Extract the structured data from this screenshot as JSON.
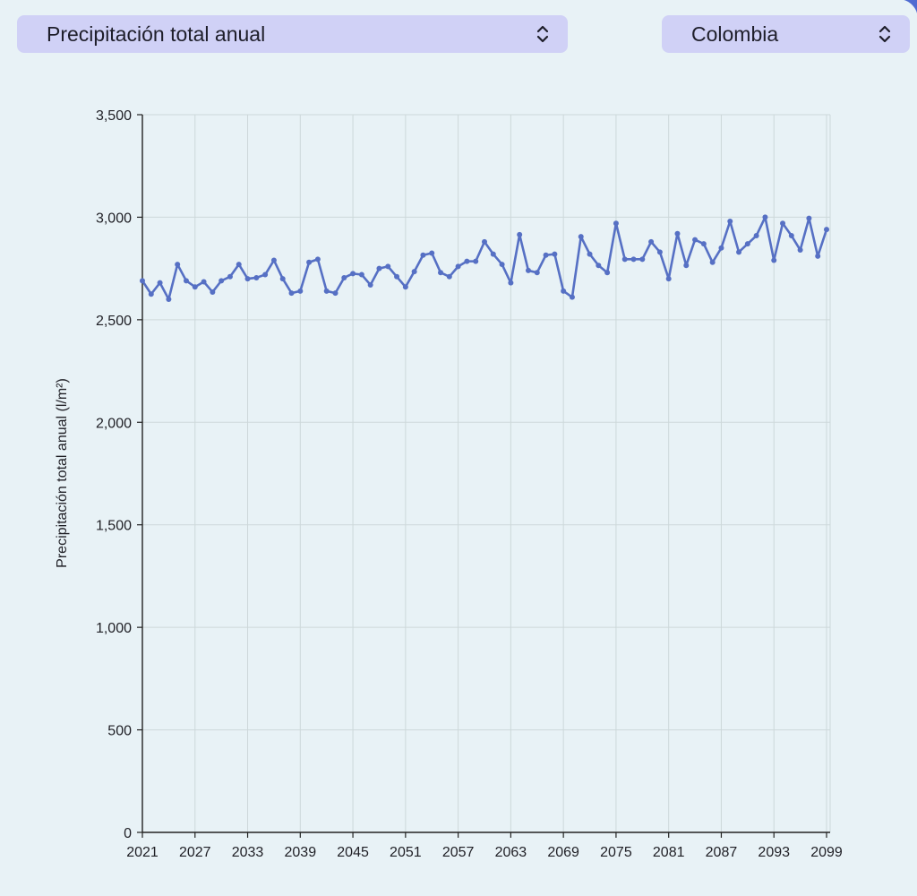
{
  "controls": {
    "variable_selected": "Precipitación total anual",
    "region_selected": "Colombia"
  },
  "icons": {
    "variable_select": "chevron-up-down-icon",
    "region_select": "chevron-up-down-icon"
  },
  "colors": {
    "background": "#e8f2f6",
    "select_background": "#d0d1f6",
    "line": "#5670c4",
    "grid": "#cdd8da"
  },
  "chart_data": {
    "type": "line",
    "title": "",
    "xlabel": "",
    "ylabel": "Precipitación total anual (l/m²)",
    "ylim": [
      0,
      3500
    ],
    "xlim": [
      2021,
      2099
    ],
    "grid": true,
    "x_tick_labels": [
      "2021",
      "2027",
      "2033",
      "2039",
      "2045",
      "2051",
      "2057",
      "2063",
      "2069",
      "2075",
      "2081",
      "2087",
      "2093",
      "2099"
    ],
    "y_tick_labels": [
      "0",
      "500",
      "1,000",
      "1,500",
      "2,000",
      "2,500",
      "3,000",
      "3,500"
    ],
    "x": [
      2021,
      2022,
      2023,
      2024,
      2025,
      2026,
      2027,
      2028,
      2029,
      2030,
      2031,
      2032,
      2033,
      2034,
      2035,
      2036,
      2037,
      2038,
      2039,
      2040,
      2041,
      2042,
      2043,
      2044,
      2045,
      2046,
      2047,
      2048,
      2049,
      2050,
      2051,
      2052,
      2053,
      2054,
      2055,
      2056,
      2057,
      2058,
      2059,
      2060,
      2061,
      2062,
      2063,
      2064,
      2065,
      2066,
      2067,
      2068,
      2069,
      2070,
      2071,
      2072,
      2073,
      2074,
      2075,
      2076,
      2077,
      2078,
      2079,
      2080,
      2081,
      2082,
      2083,
      2084,
      2085,
      2086,
      2087,
      2088,
      2089,
      2090,
      2091,
      2092,
      2093,
      2094,
      2095,
      2096,
      2097,
      2098,
      2099
    ],
    "values": [
      2690,
      2625,
      2680,
      2600,
      2770,
      2690,
      2660,
      2685,
      2635,
      2690,
      2710,
      2770,
      2700,
      2705,
      2720,
      2790,
      2700,
      2630,
      2640,
      2780,
      2795,
      2640,
      2630,
      2705,
      2725,
      2720,
      2670,
      2750,
      2760,
      2710,
      2660,
      2735,
      2815,
      2825,
      2730,
      2710,
      2760,
      2785,
      2785,
      2880,
      2820,
      2770,
      2680,
      2915,
      2740,
      2730,
      2815,
      2820,
      2640,
      2610,
      2905,
      2820,
      2765,
      2730,
      2970,
      2795,
      2795,
      2795,
      2880,
      2830,
      2700,
      2920,
      2765,
      2890,
      2870,
      2780,
      2850,
      2980,
      2830,
      2870,
      2910,
      3000,
      2790,
      2970,
      2910,
      2840,
      2995,
      2810,
      2940
    ]
  }
}
